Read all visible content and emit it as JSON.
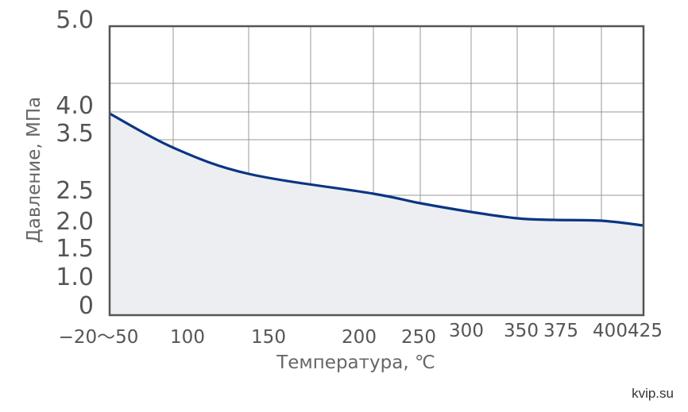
{
  "chart_data": {
    "type": "area",
    "xlabel": "Температура, ℃",
    "ylabel": "Давление, МПа",
    "x_categories": [
      "−20〜50",
      "100",
      "150",
      "200",
      "250",
      "300",
      "350",
      "375",
      "400",
      "425"
    ],
    "y_ticks": [
      "5.0",
      "4.0",
      "3.5",
      "2.5",
      "2.0",
      "1.5",
      "1.0",
      "0"
    ],
    "series": [
      {
        "x": [
          "−20〜50",
          "100",
          "150",
          "200",
          "250",
          "300",
          "350",
          "375",
          "400",
          "425"
        ],
        "values": [
          4.0,
          3.4,
          2.9,
          2.65,
          2.55,
          2.42,
          2.28,
          2.2,
          2.18,
          2.0
        ]
      }
    ],
    "grid": true,
    "colors": {
      "line": "#0b3583",
      "fill": "#edeef1",
      "frame": "#555555",
      "grid": "#9a9a9a"
    }
  },
  "watermark": "kvip.su"
}
